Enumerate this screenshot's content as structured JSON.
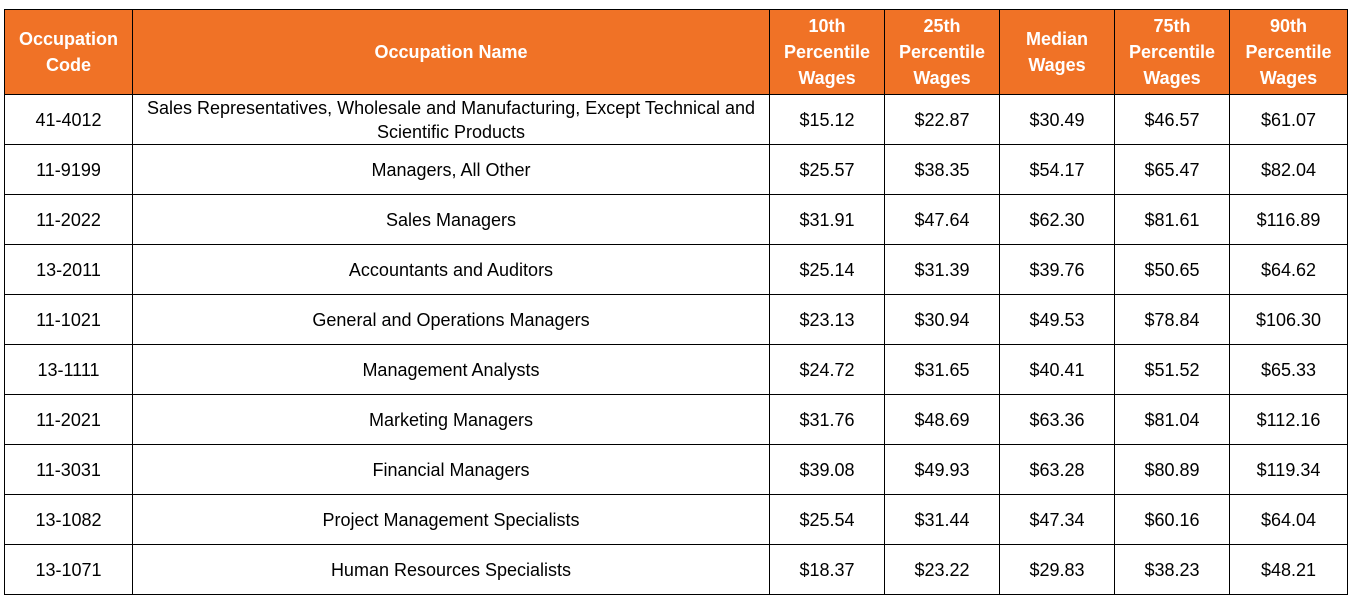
{
  "header": {
    "code": "Occupation Code",
    "name": "Occupation Name",
    "p10": "10th Percentile Wages",
    "p25": "25th Percentile Wages",
    "median": "Median Wages",
    "p75": "75th Percentile Wages",
    "p90": "90th Percentile Wages"
  },
  "rows": [
    {
      "code": "41-4012",
      "name": "Sales Representatives, Wholesale and Manufacturing, Except Technical and Scientific Products",
      "p10": "$15.12",
      "p25": "$22.87",
      "median": "$30.49",
      "p75": "$46.57",
      "p90": "$61.07"
    },
    {
      "code": "11-9199",
      "name": "Managers, All Other",
      "p10": "$25.57",
      "p25": "$38.35",
      "median": "$54.17",
      "p75": "$65.47",
      "p90": "$82.04"
    },
    {
      "code": "11-2022",
      "name": "Sales Managers",
      "p10": "$31.91",
      "p25": "$47.64",
      "median": "$62.30",
      "p75": "$81.61",
      "p90": "$116.89"
    },
    {
      "code": "13-2011",
      "name": "Accountants and Auditors",
      "p10": "$25.14",
      "p25": "$31.39",
      "median": "$39.76",
      "p75": "$50.65",
      "p90": "$64.62"
    },
    {
      "code": "11-1021",
      "name": "General and Operations Managers",
      "p10": "$23.13",
      "p25": "$30.94",
      "median": "$49.53",
      "p75": "$78.84",
      "p90": "$106.30"
    },
    {
      "code": "13-1111",
      "name": "Management Analysts",
      "p10": "$24.72",
      "p25": "$31.65",
      "median": "$40.41",
      "p75": "$51.52",
      "p90": "$65.33"
    },
    {
      "code": "11-2021",
      "name": "Marketing Managers",
      "p10": "$31.76",
      "p25": "$48.69",
      "median": "$63.36",
      "p75": "$81.04",
      "p90": "$112.16"
    },
    {
      "code": "11-3031",
      "name": "Financial Managers",
      "p10": "$39.08",
      "p25": "$49.93",
      "median": "$63.28",
      "p75": "$80.89",
      "p90": "$119.34"
    },
    {
      "code": "13-1082",
      "name": "Project Management Specialists",
      "p10": "$25.54",
      "p25": "$31.44",
      "median": "$47.34",
      "p75": "$60.16",
      "p90": "$64.04"
    },
    {
      "code": "13-1071",
      "name": "Human Resources Specialists",
      "p10": "$18.37",
      "p25": "$23.22",
      "median": "$29.83",
      "p75": "$38.23",
      "p90": "$48.21"
    }
  ],
  "colors": {
    "header_bg": "#f07226",
    "header_text": "#ffffff",
    "border": "#000000"
  }
}
